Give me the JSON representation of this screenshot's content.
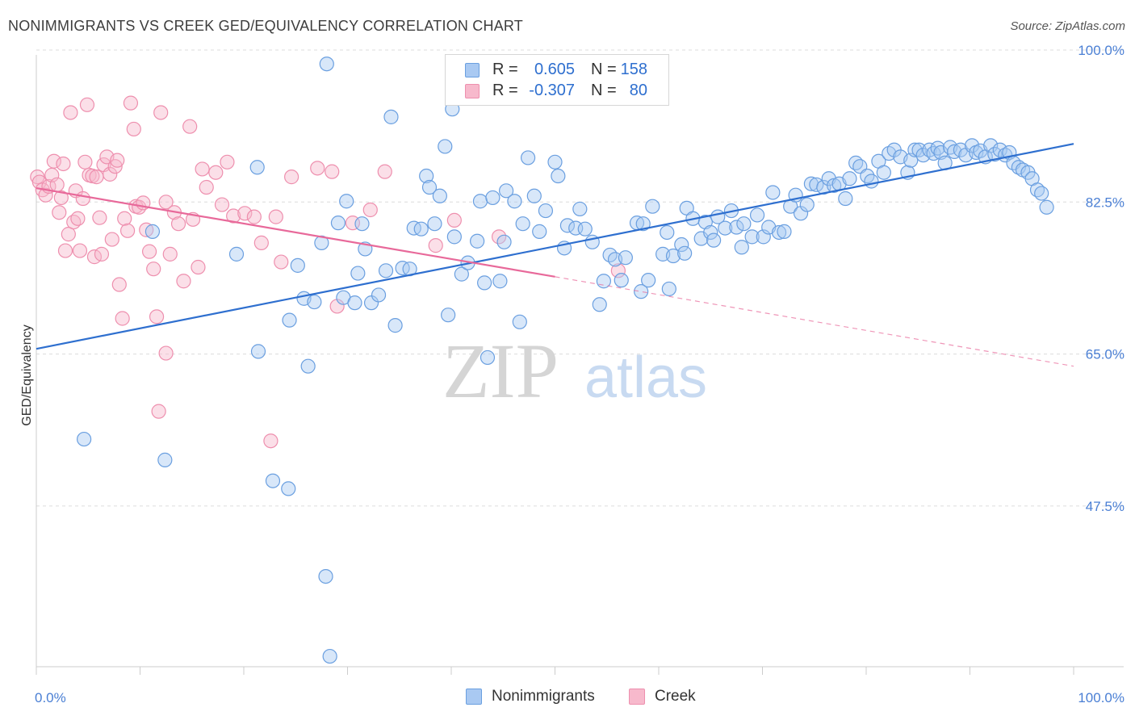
{
  "title": "NONIMMIGRANTS VS CREEK GED/EQUIVALENCY CORRELATION CHART",
  "source": "Source: ZipAtlas.com",
  "watermark": {
    "zip": "ZIP",
    "atlas": "atlas"
  },
  "colors": {
    "blue_fill": "#a9c9f2",
    "blue_stroke": "#6a9fe0",
    "blue_line": "#2e6fcf",
    "pink_fill": "#f7b9cc",
    "pink_stroke": "#ee8fae",
    "pink_line": "#e8699a",
    "tick_label_blue": "#4a7fd4",
    "grid": "#dcdcdc"
  },
  "legend": {
    "rows": [
      {
        "r_label": "R =",
        "r_value": "0.605",
        "n_label": "N =",
        "n_value": "158",
        "series": "blue"
      },
      {
        "r_label": "R =",
        "r_value": "-0.307",
        "n_label": "N =",
        "n_value": "80",
        "series": "pink"
      }
    ]
  },
  "chart_data": {
    "type": "scatter",
    "title": "NONIMMIGRANTS VS CREEK GED/EQUIVALENCY CORRELATION CHART",
    "xlabel": "",
    "ylabel": "GED/Equivalency",
    "xlim": [
      0,
      100
    ],
    "ylim": [
      29,
      100
    ],
    "x_tick_labels": [
      "0.0%",
      "100.0%"
    ],
    "y_ticks": [
      {
        "value": 100,
        "label": "100.0%"
      },
      {
        "value": 82.5,
        "label": "82.5%"
      },
      {
        "value": 65,
        "label": "65.0%"
      },
      {
        "value": 47.5,
        "label": "47.5%"
      }
    ],
    "grid": "horizontal dashed",
    "legend_placement": "bottom-center",
    "series": [
      {
        "name": "Nonimmigrants",
        "color": "#a9c9f2",
        "trend": {
          "x": [
            0,
            100
          ],
          "y": [
            65.6,
            89.2
          ],
          "style": "solid"
        },
        "points": [
          [
            4.6,
            55.2
          ],
          [
            11.2,
            79.1
          ],
          [
            12.4,
            52.8
          ],
          [
            19.3,
            76.5
          ],
          [
            21.3,
            86.5
          ],
          [
            21.4,
            65.3
          ],
          [
            22.8,
            50.4
          ],
          [
            24.3,
            49.5
          ],
          [
            24.4,
            68.9
          ],
          [
            25.2,
            75.2
          ],
          [
            25.8,
            71.4
          ],
          [
            26.2,
            63.6
          ],
          [
            26.8,
            71.0
          ],
          [
            27.5,
            77.8
          ],
          [
            27.9,
            39.4
          ],
          [
            28.0,
            98.4
          ],
          [
            28.3,
            30.2
          ],
          [
            29.1,
            80.1
          ],
          [
            29.6,
            71.5
          ],
          [
            29.9,
            82.6
          ],
          [
            30.7,
            70.9
          ],
          [
            31.0,
            74.3
          ],
          [
            31.4,
            80.0
          ],
          [
            31.7,
            77.1
          ],
          [
            32.3,
            70.9
          ],
          [
            33.0,
            71.8
          ],
          [
            33.7,
            74.6
          ],
          [
            34.2,
            92.3
          ],
          [
            34.6,
            68.3
          ],
          [
            35.3,
            74.9
          ],
          [
            36.0,
            74.8
          ],
          [
            36.4,
            79.5
          ],
          [
            37.1,
            79.4
          ],
          [
            37.6,
            85.5
          ],
          [
            37.9,
            84.2
          ],
          [
            38.4,
            80.0
          ],
          [
            38.9,
            83.2
          ],
          [
            39.4,
            88.9
          ],
          [
            39.7,
            69.5
          ],
          [
            40.1,
            93.2
          ],
          [
            40.3,
            78.5
          ],
          [
            41.0,
            74.2
          ],
          [
            41.6,
            75.5
          ],
          [
            42.5,
            78.0
          ],
          [
            42.8,
            82.6
          ],
          [
            43.2,
            73.2
          ],
          [
            43.5,
            64.6
          ],
          [
            44.0,
            83.0
          ],
          [
            44.7,
            73.4
          ],
          [
            45.1,
            77.9
          ],
          [
            45.3,
            83.8
          ],
          [
            46.1,
            82.6
          ],
          [
            46.6,
            68.7
          ],
          [
            46.9,
            80.0
          ],
          [
            47.4,
            87.6
          ],
          [
            48.0,
            83.2
          ],
          [
            48.5,
            79.1
          ],
          [
            49.1,
            81.5
          ],
          [
            50.0,
            87.1
          ],
          [
            50.3,
            85.5
          ],
          [
            50.9,
            77.2
          ],
          [
            51.2,
            79.8
          ],
          [
            52.0,
            79.5
          ],
          [
            52.4,
            81.7
          ],
          [
            52.9,
            79.4
          ],
          [
            53.6,
            77.9
          ],
          [
            54.3,
            70.7
          ],
          [
            54.7,
            73.4
          ],
          [
            55.3,
            76.4
          ],
          [
            55.8,
            75.9
          ],
          [
            56.4,
            73.5
          ],
          [
            56.8,
            76.1
          ],
          [
            57.9,
            80.1
          ],
          [
            58.3,
            72.2
          ],
          [
            58.5,
            80.0
          ],
          [
            59.0,
            73.5
          ],
          [
            59.4,
            82.0
          ],
          [
            60.4,
            76.5
          ],
          [
            60.8,
            79.0
          ],
          [
            61.4,
            76.3
          ],
          [
            62.2,
            77.6
          ],
          [
            62.5,
            76.6
          ],
          [
            62.7,
            81.8
          ],
          [
            63.3,
            80.6
          ],
          [
            64.1,
            78.3
          ],
          [
            64.5,
            80.2
          ],
          [
            65.0,
            79.0
          ],
          [
            65.3,
            78.1
          ],
          [
            65.7,
            80.8
          ],
          [
            66.4,
            79.5
          ],
          [
            67.0,
            81.5
          ],
          [
            67.5,
            79.6
          ],
          [
            68.0,
            77.3
          ],
          [
            68.2,
            80.0
          ],
          [
            69.0,
            78.5
          ],
          [
            69.5,
            81.0
          ],
          [
            70.1,
            78.5
          ],
          [
            70.6,
            79.6
          ],
          [
            71.0,
            83.6
          ],
          [
            71.6,
            79.0
          ],
          [
            72.1,
            79.1
          ],
          [
            72.7,
            82.0
          ],
          [
            73.2,
            83.3
          ],
          [
            73.7,
            81.2
          ],
          [
            74.3,
            82.2
          ],
          [
            74.7,
            84.6
          ],
          [
            75.2,
            84.5
          ],
          [
            75.9,
            84.2
          ],
          [
            76.4,
            85.2
          ],
          [
            76.9,
            84.4
          ],
          [
            77.4,
            84.6
          ],
          [
            78.0,
            82.9
          ],
          [
            78.4,
            85.2
          ],
          [
            79.0,
            87.0
          ],
          [
            79.4,
            86.6
          ],
          [
            80.1,
            85.5
          ],
          [
            80.5,
            84.9
          ],
          [
            81.2,
            87.2
          ],
          [
            81.7,
            85.9
          ],
          [
            82.2,
            88.1
          ],
          [
            82.7,
            88.5
          ],
          [
            83.3,
            87.7
          ],
          [
            84.0,
            85.9
          ],
          [
            84.3,
            87.3
          ],
          [
            84.7,
            88.5
          ],
          [
            85.1,
            88.5
          ],
          [
            85.5,
            87.9
          ],
          [
            86.1,
            88.5
          ],
          [
            86.5,
            88.1
          ],
          [
            86.9,
            88.7
          ],
          [
            87.2,
            88.2
          ],
          [
            87.6,
            87.0
          ],
          [
            88.1,
            88.8
          ],
          [
            88.5,
            88.3
          ],
          [
            89.1,
            88.5
          ],
          [
            89.6,
            87.9
          ],
          [
            90.2,
            89.0
          ],
          [
            90.6,
            88.2
          ],
          [
            91.0,
            88.4
          ],
          [
            91.5,
            87.7
          ],
          [
            92.0,
            89.0
          ],
          [
            92.4,
            88.0
          ],
          [
            92.9,
            88.5
          ],
          [
            93.4,
            87.9
          ],
          [
            93.8,
            88.2
          ],
          [
            94.2,
            87.0
          ],
          [
            94.7,
            86.5
          ],
          [
            95.1,
            86.2
          ],
          [
            95.6,
            85.9
          ],
          [
            96.0,
            85.2
          ],
          [
            96.5,
            83.9
          ],
          [
            96.9,
            83.5
          ],
          [
            97.4,
            81.9
          ],
          [
            61.0,
            72.5
          ]
        ]
      },
      {
        "name": "Creek",
        "color": "#f7b9cc",
        "trend": {
          "x": [
            0,
            50
          ],
          "y": [
            84.1,
            73.9
          ],
          "style": "solid",
          "dashed_extension": {
            "x": [
              50,
              100
            ],
            "y": [
              73.9,
              63.6
            ]
          }
        },
        "points": [
          [
            0.1,
            85.4
          ],
          [
            0.3,
            84.8
          ],
          [
            0.6,
            83.9
          ],
          [
            0.9,
            83.3
          ],
          [
            1.2,
            84.3
          ],
          [
            1.5,
            85.6
          ],
          [
            1.7,
            87.2
          ],
          [
            2.0,
            84.5
          ],
          [
            2.2,
            81.3
          ],
          [
            2.4,
            83.0
          ],
          [
            2.6,
            86.9
          ],
          [
            2.8,
            76.9
          ],
          [
            3.1,
            78.8
          ],
          [
            3.3,
            92.8
          ],
          [
            3.6,
            80.2
          ],
          [
            3.8,
            83.8
          ],
          [
            4.0,
            80.6
          ],
          [
            4.2,
            76.9
          ],
          [
            4.5,
            82.9
          ],
          [
            4.7,
            87.1
          ],
          [
            4.9,
            93.7
          ],
          [
            5.1,
            85.6
          ],
          [
            5.4,
            85.5
          ],
          [
            5.6,
            76.2
          ],
          [
            5.8,
            85.4
          ],
          [
            6.1,
            80.7
          ],
          [
            6.3,
            76.5
          ],
          [
            6.5,
            86.8
          ],
          [
            6.8,
            87.7
          ],
          [
            7.1,
            85.7
          ],
          [
            7.3,
            78.2
          ],
          [
            7.6,
            86.6
          ],
          [
            7.8,
            87.3
          ],
          [
            8.0,
            73.0
          ],
          [
            8.3,
            69.1
          ],
          [
            8.5,
            80.6
          ],
          [
            8.8,
            79.2
          ],
          [
            9.1,
            93.9
          ],
          [
            9.4,
            90.9
          ],
          [
            9.6,
            82.0
          ],
          [
            9.9,
            81.9
          ],
          [
            10.3,
            82.4
          ],
          [
            10.6,
            79.3
          ],
          [
            10.9,
            76.8
          ],
          [
            11.3,
            74.8
          ],
          [
            11.6,
            69.3
          ],
          [
            12.0,
            92.8
          ],
          [
            12.5,
            82.5
          ],
          [
            12.9,
            76.5
          ],
          [
            13.3,
            81.3
          ],
          [
            13.7,
            80.0
          ],
          [
            14.2,
            73.4
          ],
          [
            14.8,
            91.2
          ],
          [
            15.1,
            80.5
          ],
          [
            15.6,
            75.0
          ],
          [
            16.0,
            86.3
          ],
          [
            16.4,
            84.2
          ],
          [
            17.3,
            85.9
          ],
          [
            17.9,
            82.2
          ],
          [
            18.4,
            87.1
          ],
          [
            19.0,
            80.9
          ],
          [
            20.1,
            81.2
          ],
          [
            21.0,
            80.8
          ],
          [
            21.7,
            77.8
          ],
          [
            22.6,
            55.0
          ],
          [
            23.1,
            80.8
          ],
          [
            23.6,
            75.6
          ],
          [
            24.6,
            85.4
          ],
          [
            27.1,
            86.4
          ],
          [
            28.5,
            86.0
          ],
          [
            29.0,
            70.5
          ],
          [
            30.5,
            80.1
          ],
          [
            32.2,
            81.6
          ],
          [
            33.6,
            86.0
          ],
          [
            38.5,
            77.5
          ],
          [
            40.3,
            80.4
          ],
          [
            44.6,
            78.5
          ],
          [
            56.1,
            74.6
          ],
          [
            12.5,
            65.1
          ],
          [
            11.8,
            58.4
          ]
        ]
      }
    ]
  },
  "bottom_legend": {
    "items": [
      {
        "label": "Nonimmigrants",
        "series": "blue"
      },
      {
        "label": "Creek",
        "series": "pink"
      }
    ]
  }
}
